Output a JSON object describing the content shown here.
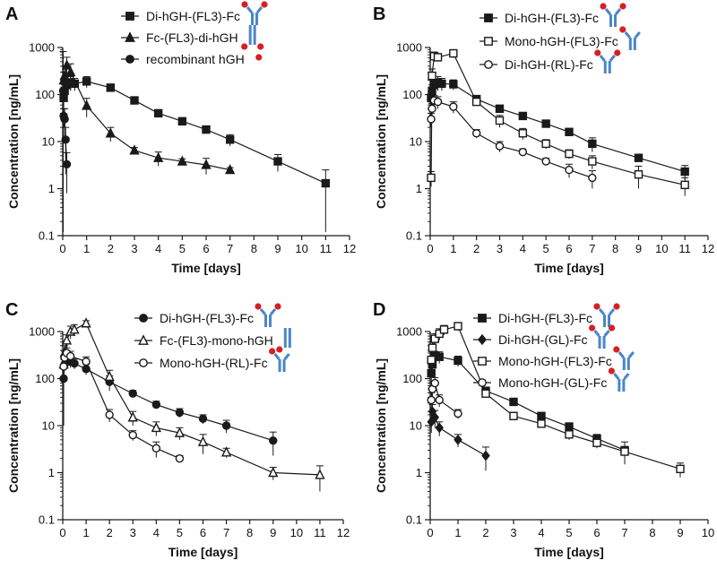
{
  "colors": {
    "line": "#1a1a1a",
    "protein_blue": "#4a86c8",
    "protein_red": "#d61f26"
  },
  "chart_data": [
    {
      "type": "line",
      "panel": "A",
      "xlabel": "Time [days]",
      "ylabel": "Concentration [ng/mL]",
      "xlim": [
        0,
        12
      ],
      "ylim_log": [
        0.1,
        1000
      ],
      "x_ticks": [
        "0",
        "1",
        "2",
        "3",
        "4",
        "5",
        "6",
        "7",
        "8",
        "9",
        "10",
        "11",
        "12"
      ],
      "y_ticks": [
        "0.1",
        "1",
        "10",
        "100",
        "1000"
      ],
      "legend_position": "top-right",
      "series": [
        {
          "name": "Di-hGH-(FL3)-Fc",
          "marker": "square-filled",
          "icon": "antibody-di",
          "x": [
            0.04,
            0.08,
            0.17,
            0.33,
            0.5,
            1,
            2,
            3,
            4,
            5,
            6,
            7,
            9,
            11
          ],
          "y": [
            85,
            120,
            160,
            180,
            170,
            190,
            140,
            75,
            40,
            27,
            18,
            11,
            3.8,
            1.3
          ],
          "err": [
            30,
            40,
            40,
            60,
            50,
            50,
            20,
            10,
            6,
            4,
            3,
            3,
            1.5,
            1.2
          ]
        },
        {
          "name": "Fc-(FL3)-di-hGH",
          "marker": "triangle-filled",
          "icon": "antibody-fc",
          "x": [
            0.04,
            0.08,
            0.17,
            0.33,
            1,
            2,
            3,
            4,
            5,
            6,
            7
          ],
          "y": [
            200,
            250,
            420,
            300,
            58,
            15,
            6.5,
            4.5,
            3.8,
            3.2,
            2.5
          ],
          "err": [
            100,
            150,
            200,
            150,
            25,
            5,
            1,
            1.5,
            0.5,
            1.2,
            0.3
          ]
        },
        {
          "name": "recombinant hGH",
          "marker": "circle-filled",
          "icon": "dot-red",
          "x": [
            0.02,
            0.04,
            0.08,
            0.12,
            0.17
          ],
          "y": [
            120,
            35,
            30,
            11,
            3.3
          ],
          "err": [
            700,
            15,
            20,
            9,
            2.5
          ]
        }
      ]
    },
    {
      "type": "line",
      "panel": "B",
      "xlabel": "Time [days]",
      "ylabel": "Concentration [ng/mL]",
      "xlim": [
        0,
        12
      ],
      "ylim_log": [
        0.1,
        1000
      ],
      "x_ticks": [
        "0",
        "1",
        "2",
        "3",
        "4",
        "5",
        "6",
        "7",
        "8",
        "9",
        "10",
        "11",
        "12"
      ],
      "y_ticks": [
        "0.1",
        "1",
        "10",
        "100",
        "1000"
      ],
      "legend_position": "top-right",
      "series": [
        {
          "name": "Di-hGH-(FL3)-Fc",
          "marker": "square-filled",
          "icon": "antibody-di",
          "x": [
            0.04,
            0.08,
            0.17,
            0.33,
            0.5,
            1,
            2,
            3,
            4,
            5,
            6,
            7,
            9,
            11
          ],
          "y": [
            85,
            120,
            160,
            180,
            170,
            165,
            80,
            50,
            35,
            24,
            16,
            9,
            4.5,
            2.3
          ],
          "err": [
            30,
            40,
            40,
            60,
            50,
            40,
            15,
            8,
            5,
            3,
            3,
            3,
            0.8,
            0.8
          ]
        },
        {
          "name": "Mono-hGH-(FL3)-Fc",
          "marker": "square-open",
          "icon": "antibody-mono",
          "x": [
            0.04,
            0.08,
            0.17,
            0.33,
            1,
            2,
            3,
            4,
            5,
            6,
            7,
            9,
            11
          ],
          "y": [
            1.7,
            250,
            650,
            620,
            750,
            70,
            28,
            15,
            9,
            5.5,
            3.8,
            2,
            1.2
          ],
          "err": [
            0.6,
            100,
            150,
            120,
            150,
            10,
            8,
            4,
            2,
            1.2,
            1.2,
            1,
            0.5
          ]
        },
        {
          "name": "Di-hGH-(RL)-Fc",
          "marker": "circle-open",
          "icon": "antibody-di-rl",
          "x": [
            0.04,
            0.08,
            0.17,
            0.33,
            1,
            2,
            3,
            4,
            5,
            6,
            7
          ],
          "y": [
            30,
            50,
            75,
            70,
            55,
            15,
            8,
            6,
            3.8,
            2.5,
            1.7
          ],
          "err": [
            10,
            15,
            20,
            20,
            15,
            3,
            2,
            1,
            0.6,
            0.8,
            0.7
          ]
        }
      ]
    },
    {
      "type": "line",
      "panel": "C",
      "xlabel": "Time [days]",
      "ylabel": "Concentration [ng/mL]",
      "xlim": [
        0,
        12
      ],
      "ylim_log": [
        0.1,
        1000
      ],
      "x_ticks": [
        "0",
        "1",
        "2",
        "3",
        "4",
        "5",
        "6",
        "7",
        "8",
        "9",
        "10",
        "11",
        "12"
      ],
      "y_ticks": [
        "0.1",
        "1",
        "10",
        "100",
        "1000"
      ],
      "legend_position": "top-right",
      "series": [
        {
          "name": "Di-hGH-(FL3)-Fc",
          "marker": "circle-filled",
          "icon": "antibody-di",
          "x": [
            0.04,
            0.08,
            0.17,
            0.33,
            0.5,
            1,
            2,
            3,
            4,
            5,
            6,
            7,
            9
          ],
          "y": [
            100,
            200,
            250,
            230,
            210,
            160,
            85,
            48,
            28,
            19,
            14,
            10,
            4.8
          ],
          "err": [
            90,
            50,
            60,
            60,
            50,
            40,
            30,
            8,
            5,
            4,
            3,
            3,
            2.5
          ]
        },
        {
          "name": "Fc-(FL3)-mono-hGH",
          "marker": "triangle-open",
          "icon": "antibody-fc-mono",
          "x": [
            0.04,
            0.08,
            0.17,
            0.33,
            0.5,
            1,
            2,
            3,
            4,
            5,
            6,
            7,
            9,
            11
          ],
          "y": [
            200,
            350,
            650,
            1000,
            1100,
            1500,
            110,
            15,
            9,
            7,
            4.5,
            2.7,
            1,
            0.9
          ],
          "err": [
            100,
            150,
            200,
            300,
            300,
            200,
            40,
            5,
            3,
            2,
            2,
            0.6,
            0.3,
            0.5
          ]
        },
        {
          "name": "Mono-hGH-(RL)-Fc",
          "marker": "circle-open",
          "icon": "antibody-mono-rl",
          "x": [
            0.04,
            0.08,
            0.17,
            0.33,
            1,
            2,
            3,
            4,
            5
          ],
          "y": [
            180,
            280,
            350,
            300,
            230,
            17,
            6.3,
            3.3,
            2
          ],
          "err": [
            80,
            100,
            100,
            80,
            60,
            5,
            1.5,
            1.2,
            0.3
          ]
        }
      ]
    },
    {
      "type": "line",
      "panel": "D",
      "xlabel": "Time [days]",
      "ylabel": "Concentration [ng/mL]",
      "xlim": [
        0,
        10
      ],
      "ylim_log": [
        0.1,
        1000
      ],
      "x_ticks": [
        "0",
        "1",
        "2",
        "3",
        "4",
        "5",
        "6",
        "7",
        "8",
        "9",
        "10"
      ],
      "y_ticks": [
        "0.1",
        "1",
        "10",
        "100",
        "1000"
      ],
      "legend_position": "top-right",
      "series": [
        {
          "name": "Di-hGH-(FL3)-Fc",
          "marker": "square-filled",
          "icon": "antibody-di",
          "x": [
            0.04,
            0.08,
            0.17,
            0.33,
            1,
            2,
            3,
            4,
            5,
            6,
            7
          ],
          "y": [
            130,
            200,
            300,
            290,
            240,
            55,
            32,
            16,
            9.5,
            5.3,
            3
          ],
          "err": [
            50,
            60,
            80,
            80,
            60,
            10,
            5,
            3,
            2,
            1.2,
            1.5
          ]
        },
        {
          "name": "Di-hGH-(GL)-Fc",
          "marker": "diamond-filled",
          "icon": "antibody-di-gl",
          "x": [
            0.04,
            0.08,
            0.17,
            0.33,
            1,
            2
          ],
          "y": [
            12,
            20,
            15,
            9,
            5,
            2.3
          ],
          "err": [
            5,
            8,
            6,
            3,
            1.5,
            1.2
          ]
        },
        {
          "name": "Mono-hGH-(FL3)-Fc",
          "marker": "square-open",
          "icon": "antibody-mono",
          "x": [
            0.04,
            0.08,
            0.17,
            0.33,
            0.5,
            1,
            2,
            3,
            4,
            5,
            6,
            7,
            9
          ],
          "y": [
            250,
            450,
            700,
            900,
            1100,
            1300,
            48,
            16,
            11,
            6.5,
            4.3,
            2.8,
            1.2
          ],
          "err": [
            100,
            150,
            200,
            250,
            250,
            250,
            8,
            3,
            2,
            1.5,
            1,
            0.8,
            0.4
          ]
        },
        {
          "name": "Mono-hGH-(GL)-Fc",
          "marker": "circle-open",
          "icon": "antibody-mono-gl",
          "x": [
            0.04,
            0.08,
            0.17,
            0.33,
            1
          ],
          "y": [
            35,
            60,
            80,
            35,
            18
          ],
          "err": [
            15,
            20,
            25,
            10,
            4
          ]
        }
      ]
    }
  ]
}
